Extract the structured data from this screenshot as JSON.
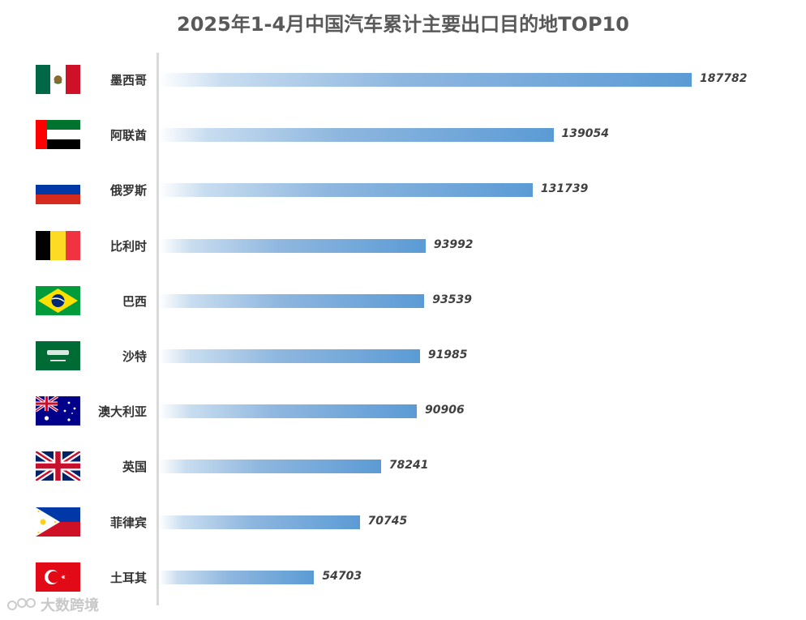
{
  "chart_data": {
    "type": "bar",
    "orientation": "horizontal",
    "title": "2025年1-4月中国汽车累计主要出口目的地TOP10",
    "categories": [
      "墨西哥",
      "阿联酋",
      "俄罗斯",
      "比利时",
      "巴西",
      "沙特",
      "澳大利亚",
      "英国",
      "菲律宾",
      "土耳其"
    ],
    "values": [
      187782,
      139054,
      131739,
      93992,
      93539,
      91985,
      90906,
      78241,
      70745,
      54703
    ],
    "flags": [
      "mexico-flag",
      "uae-flag",
      "russia-flag",
      "belgium-flag",
      "brazil-flag",
      "saudi-arabia-flag",
      "australia-flag",
      "uk-flag",
      "philippines-flag",
      "turkey-flag"
    ],
    "bar_color": "#5b9bd5",
    "value_labels": true,
    "grid": false,
    "legend": "none"
  },
  "watermark": "大数跨境"
}
